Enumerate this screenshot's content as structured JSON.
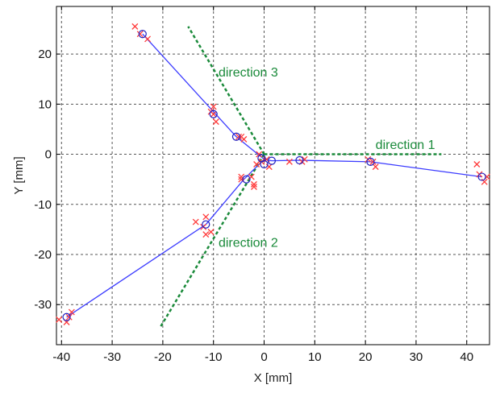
{
  "chart_data": {
    "type": "scatter",
    "title": "",
    "xlabel": "X [mm]",
    "ylabel": "Y [mm]",
    "xlim": [
      -41,
      44.5
    ],
    "ylim": [
      -38,
      29.5
    ],
    "xticks": [
      -40,
      -30,
      -20,
      -10,
      0,
      10,
      20,
      30,
      40
    ],
    "yticks": [
      -30,
      -20,
      -10,
      0,
      10,
      20
    ],
    "xtick_labels": [
      "-40",
      "-30",
      "-20",
      "-10",
      "0",
      "10",
      "20",
      "30",
      "40"
    ],
    "ytick_labels": [
      "-30",
      "-20",
      "-10",
      "0",
      "10",
      "20"
    ],
    "grid": true,
    "colors": {
      "fit_line": "#3b3bff",
      "circles": "#2020c0",
      "crosses": "#ff3b3b",
      "direction": "#1a8a3a",
      "grid": "#555555"
    },
    "fit_lines": [
      {
        "points": [
          [
            -24,
            24
          ],
          [
            -10,
            8.5
          ],
          [
            -5.5,
            3.5
          ],
          [
            0,
            -1
          ]
        ]
      },
      {
        "points": [
          [
            -39,
            -32.5
          ],
          [
            -11.5,
            -14
          ],
          [
            -4,
            -5
          ],
          [
            0,
            -1
          ]
        ]
      },
      {
        "points": [
          [
            0,
            -1
          ],
          [
            1.5,
            -1.3
          ],
          [
            7,
            -1.2
          ],
          [
            21,
            -1.5
          ],
          [
            43,
            -4.5
          ]
        ]
      }
    ],
    "circle_points": [
      [
        -24,
        24
      ],
      [
        -10,
        8
      ],
      [
        -5.5,
        3.5
      ],
      [
        -0.5,
        -0.8
      ],
      [
        0,
        -2
      ],
      [
        -39,
        -32.5
      ],
      [
        -11.5,
        -14
      ],
      [
        -3.5,
        -5
      ],
      [
        1.5,
        -1.3
      ],
      [
        7,
        -1.2
      ],
      [
        21,
        -1.5
      ],
      [
        43,
        -4.5
      ]
    ],
    "cross_points": [
      [
        -25.5,
        25.5
      ],
      [
        -23,
        23
      ],
      [
        -24.5,
        24
      ],
      [
        -10,
        9.5
      ],
      [
        -10.5,
        8.5
      ],
      [
        -9.5,
        6.5
      ],
      [
        -10,
        8
      ],
      [
        -4.5,
        3.5
      ],
      [
        -4,
        3
      ],
      [
        -5,
        3.5
      ],
      [
        -1,
        0
      ],
      [
        -1.5,
        -2
      ],
      [
        0.5,
        -1
      ],
      [
        1,
        -2.5
      ],
      [
        -0.5,
        -1.5
      ],
      [
        -2.5,
        -4.5
      ],
      [
        -4.5,
        -4.5
      ],
      [
        -2,
        -6.5
      ],
      [
        -2,
        -6
      ],
      [
        -4.5,
        -5
      ],
      [
        -13.5,
        -13.5
      ],
      [
        -11.5,
        -12.5
      ],
      [
        -11.5,
        -16
      ],
      [
        -10.5,
        -15.5
      ],
      [
        -12,
        -14.5
      ],
      [
        -39,
        -33.5
      ],
      [
        -38,
        -31.5
      ],
      [
        -40.5,
        -33
      ],
      [
        -38.5,
        -32.5
      ],
      [
        5,
        -1.5
      ],
      [
        8,
        -1
      ],
      [
        7.5,
        -1.5
      ],
      [
        20.5,
        -1
      ],
      [
        22,
        -2.5
      ],
      [
        21.5,
        -1.5
      ],
      [
        42,
        -2
      ],
      [
        43.5,
        -5.5
      ],
      [
        44,
        -4.5
      ],
      [
        42.5,
        -4
      ]
    ],
    "direction_lines": [
      {
        "label": "direction 1",
        "from": [
          0,
          0
        ],
        "to": [
          35,
          0
        ],
        "label_at": [
          22,
          2
        ]
      },
      {
        "label": "direction 2",
        "from": [
          0,
          0
        ],
        "to": [
          -20.5,
          -34.5
        ],
        "label_at": [
          -9,
          -17.5
        ]
      },
      {
        "label": "direction 3",
        "from": [
          0,
          0
        ],
        "to": [
          -15,
          25.5
        ],
        "label_at": [
          -9,
          16.5
        ]
      }
    ]
  }
}
